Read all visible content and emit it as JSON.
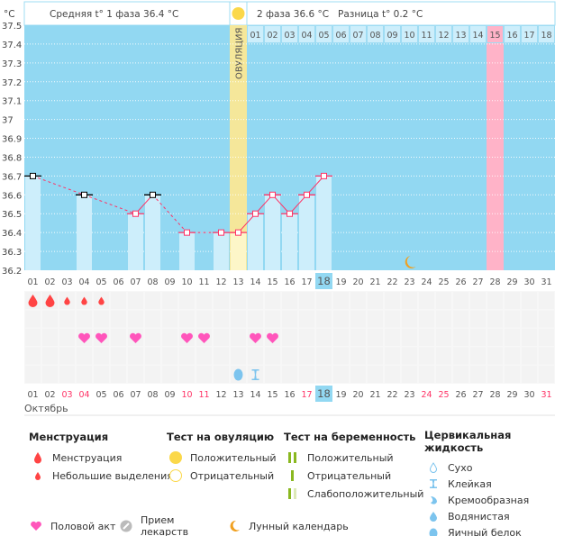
{
  "header": {
    "unit": "°C",
    "phase1": "Средняя t° 1 фаза 36.4 °C",
    "phase2": "2 фаза 36.6 °C",
    "difference": "Разница t° 0.2 °C",
    "ovulation_label": "ОВУЛЯЦИЯ",
    "luteal_days": [
      "01",
      "02",
      "03",
      "04",
      "05",
      "06",
      "07",
      "08",
      "09",
      "10",
      "11",
      "12",
      "13",
      "14",
      "15",
      "16",
      "17",
      "18"
    ],
    "luteal_highlight_day": "15"
  },
  "month": "Октябрь",
  "colors": {
    "background": "#92d8f2",
    "bar": "#cdeefb",
    "ovulation": "#f5e79a",
    "line": "#ff3366",
    "marker_excluded": "#000000",
    "period_day": "#ffb3c8",
    "today": "#92d8f2",
    "weekend": "#ff3366"
  },
  "chart_data": {
    "type": "bar+line",
    "ylabel": "°C",
    "ylim": [
      36.2,
      37.5
    ],
    "yticks": [
      "37.5",
      "37.4",
      "37.3",
      "37.2",
      "37.1",
      "37",
      "36.9",
      "36.8",
      "36.7",
      "36.6",
      "36.5",
      "36.4",
      "36.3",
      "36.2"
    ],
    "days": [
      "01",
      "02",
      "03",
      "04",
      "05",
      "06",
      "07",
      "08",
      "09",
      "10",
      "11",
      "12",
      "13",
      "14",
      "15",
      "16",
      "17",
      "18",
      "19",
      "20",
      "21",
      "22",
      "23",
      "24",
      "25",
      "26",
      "27",
      "28",
      "29",
      "30",
      "31"
    ],
    "temperatures": [
      {
        "day": 1,
        "t": 36.7,
        "excluded": true
      },
      {
        "day": 4,
        "t": 36.6,
        "excluded": true
      },
      {
        "day": 7,
        "t": 36.5,
        "excluded": false
      },
      {
        "day": 8,
        "t": 36.6,
        "excluded": true
      },
      {
        "day": 10,
        "t": 36.4,
        "excluded": false
      },
      {
        "day": 12,
        "t": 36.4,
        "excluded": false
      },
      {
        "day": 13,
        "t": 36.4,
        "excluded": false
      },
      {
        "day": 14,
        "t": 36.5,
        "excluded": false
      },
      {
        "day": 15,
        "t": 36.6,
        "excluded": false
      },
      {
        "day": 16,
        "t": 36.5,
        "excluded": false
      },
      {
        "day": 17,
        "t": 36.6,
        "excluded": false
      },
      {
        "day": 18,
        "t": 36.7,
        "excluded": false
      }
    ],
    "ovulation_day": 13,
    "today": 18,
    "expected_period_day": 28,
    "moon_day": 23,
    "weekend_days": [
      3,
      4,
      10,
      11,
      17,
      24,
      25,
      31
    ],
    "menstruation": [
      {
        "day": 1,
        "type": "heavy"
      },
      {
        "day": 2,
        "type": "heavy"
      },
      {
        "day": 3,
        "type": "light"
      },
      {
        "day": 4,
        "type": "light"
      },
      {
        "day": 5,
        "type": "light"
      }
    ],
    "intercourse_days": [
      4,
      5,
      7,
      10,
      11,
      14,
      15
    ],
    "cervical": [
      {
        "day": 13,
        "type": "egg-white"
      },
      {
        "day": 14,
        "type": "sticky"
      }
    ]
  },
  "legend": {
    "menstruation": {
      "title": "Менструация",
      "items": [
        "Менструация",
        "Небольшие выделения"
      ]
    },
    "ovulation_test": {
      "title": "Тест на овуляцию",
      "items": [
        "Положительный",
        "Отрицательный"
      ]
    },
    "pregnancy_test": {
      "title": "Тест на беременность",
      "items": [
        "Положительный",
        "Отрицательный",
        "Слабоположительный"
      ]
    },
    "cervical": {
      "title": "Цервикальная жидкость",
      "items": [
        "Сухо",
        "Клейкая",
        "Кремообразная",
        "Водянистая",
        "Яичный белок"
      ]
    },
    "other": [
      "Половой акт",
      "Прием лекарств",
      "Лунный календарь"
    ]
  }
}
